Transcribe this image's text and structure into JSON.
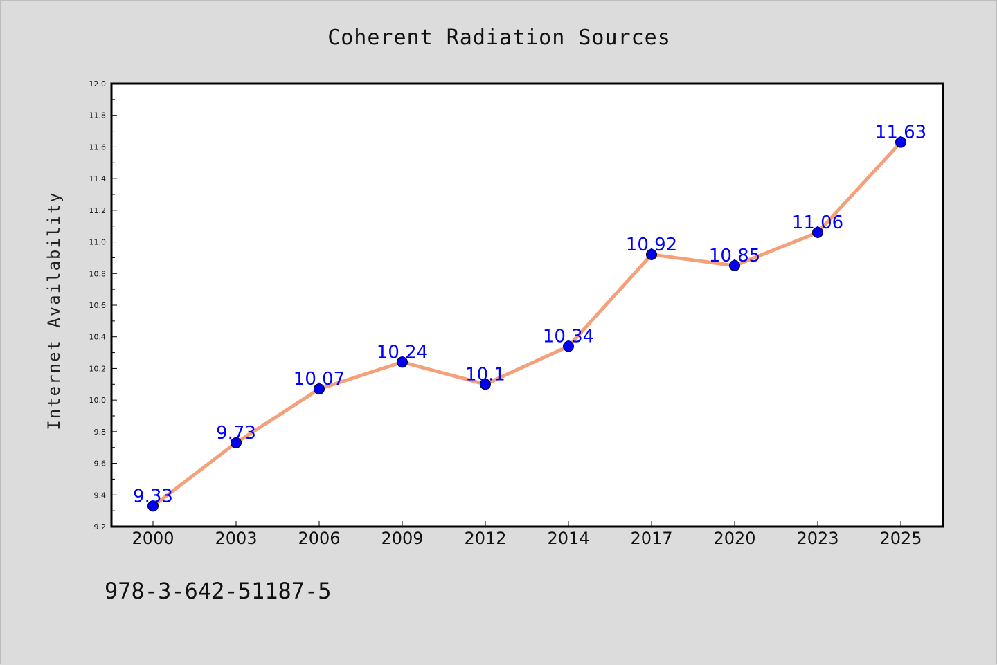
{
  "chart_data": {
    "type": "line",
    "title": "Coherent Radiation Sources",
    "xlabel": "",
    "ylabel": "Internet Availability",
    "categories": [
      "2000",
      "2003",
      "2006",
      "2009",
      "2012",
      "2014",
      "2017",
      "2020",
      "2023",
      "2025"
    ],
    "series": [
      {
        "values": [
          9.33,
          9.73,
          10.07,
          10.24,
          10.1,
          10.34,
          10.92,
          10.85,
          11.06,
          11.63
        ],
        "line_color": "#f4a07a",
        "marker_color": "#0000ee",
        "label_color": "#0000ff"
      }
    ],
    "data_labels": [
      "9.33",
      "9.73",
      "10.07",
      "10.24",
      "10.1",
      "10.34",
      "10.92",
      "10.85",
      "11.06",
      "11.63"
    ],
    "ylim": [
      9.2,
      12.0
    ],
    "y_ticks": [
      "9.2",
      "9.4",
      "9.6",
      "9.8",
      "10.0",
      "10.2",
      "10.4",
      "10.6",
      "10.8",
      "11.0",
      "11.2",
      "11.4",
      "11.6",
      "11.8",
      "12.0"
    ],
    "grid": false,
    "legend": "none",
    "background_color": "#dcdcdc",
    "plot_background_color": "#ffffff"
  },
  "footer": {
    "code": "978-3-642-51187-5"
  }
}
